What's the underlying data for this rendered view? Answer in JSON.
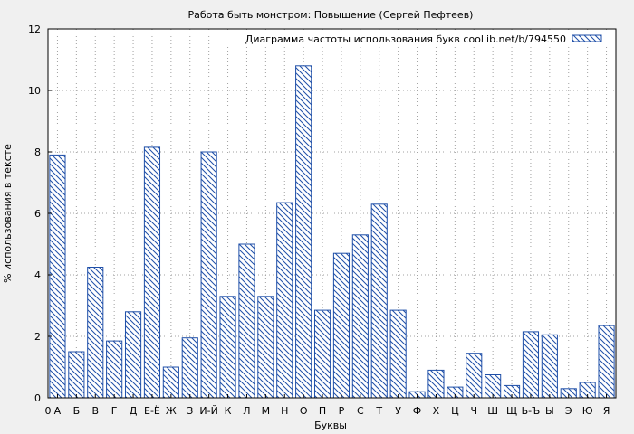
{
  "chart_data": {
    "type": "bar",
    "title": "Работа быть монстром: Повышение (Сергей Пефтеев)",
    "xlabel": "Буквы",
    "ylabel": "% использования в тексте",
    "ylim": [
      0,
      12
    ],
    "yticks": [
      "0",
      "2",
      "4",
      "6",
      "8",
      "10",
      "12"
    ],
    "grid": true,
    "legend_position": "top-right",
    "legend": "Диаграмма частоты использования букв coollib.net/b/794550",
    "x_start_label": "0",
    "categories": [
      "А",
      "Б",
      "В",
      "Г",
      "Д",
      "Е-Ё",
      "Ж",
      "З",
      "И-Й",
      "К",
      "Л",
      "М",
      "Н",
      "О",
      "П",
      "Р",
      "С",
      "Т",
      "У",
      "Ф",
      "Х",
      "Ц",
      "Ч",
      "Ш",
      "Щ",
      "Ь-Ъ",
      "Ы",
      "Э",
      "Ю",
      "Я"
    ],
    "values": [
      7.9,
      1.5,
      4.25,
      1.85,
      2.8,
      8.15,
      1.0,
      1.95,
      8.0,
      3.3,
      5.0,
      3.3,
      6.35,
      10.8,
      2.85,
      4.7,
      5.3,
      6.3,
      2.85,
      0.2,
      0.9,
      0.35,
      1.45,
      0.75,
      0.4,
      2.15,
      2.05,
      0.3,
      0.5,
      2.35
    ],
    "colors": {
      "bar_stroke": "#1f4fa8",
      "hatch": "#1f4fa8",
      "fill": "#ffffff",
      "background": "#f0f0f0",
      "grid": "#a0a0a0"
    }
  }
}
